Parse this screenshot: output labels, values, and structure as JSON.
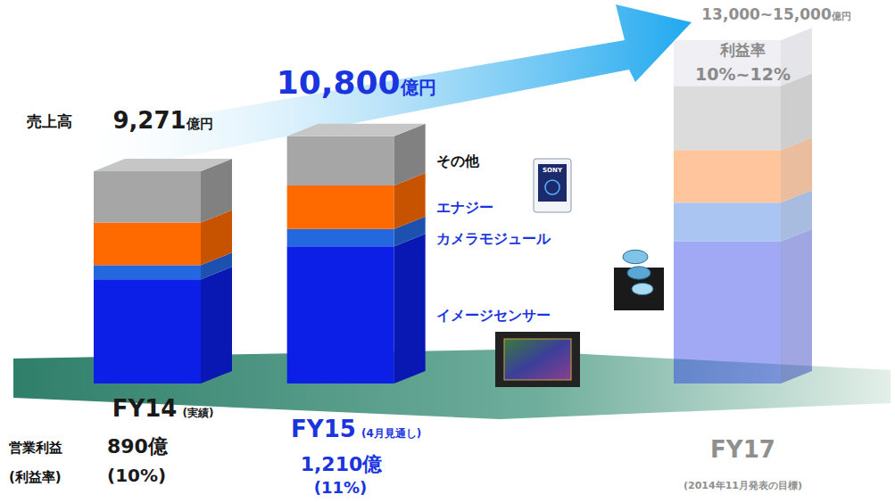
{
  "chart_data": {
    "type": "bar",
    "stacked": true,
    "tick_labels": false,
    "categories": [
      "FY14",
      "FY15",
      "FY17"
    ],
    "category_notes": [
      "(実績)",
      "(4月見通し)",
      "(2014年11月発表の目標)"
    ],
    "series": [
      {
        "name": "イメージセンサー",
        "color": "#0b1fe6",
        "values": [
          4550,
          5990,
          6200
        ]
      },
      {
        "name": "カメラモジュール",
        "color": "#2468e0",
        "values": [
          620,
          760,
          1700
        ]
      },
      {
        "name": "エナジー",
        "color": "#ff6a00",
        "values": [
          1860,
          1900,
          2300
        ]
      },
      {
        "name": "その他",
        "color": "#a6a6a6",
        "values": [
          2241,
          2150,
          2800
        ]
      }
    ],
    "sales_title": "売上高",
    "sales_unit": "億円",
    "sales": [
      {
        "value": 9271,
        "label": "9,271"
      },
      {
        "value": 10800,
        "label": "10,800"
      },
      {
        "low": 13000,
        "high": 15000,
        "label": "13,000~15,000"
      }
    ],
    "operating_profit_title": "営業利益",
    "margin_title": "(利益率)",
    "operating_profit": [
      "890億",
      "1,210億"
    ],
    "margins": [
      "(10%)",
      "(11%)"
    ],
    "target_margin": {
      "title": "利益率",
      "label": "10%~12%"
    },
    "battery_icon_text": "SONY"
  }
}
